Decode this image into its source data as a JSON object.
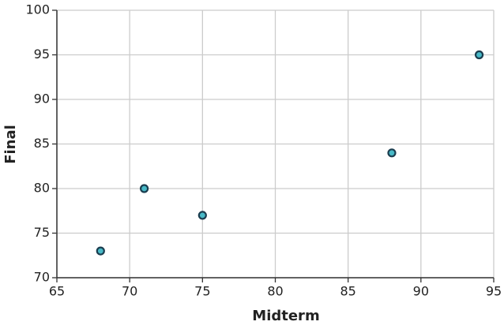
{
  "chart_data": {
    "type": "scatter",
    "x_label": "Midterm",
    "y_label": "Final",
    "x": [
      68,
      71,
      75,
      88,
      94
    ],
    "values": [
      73,
      80,
      77,
      84,
      95
    ],
    "color": "#48b9c7",
    "edge_color": "#1b3d4f",
    "xlim": [
      65,
      95
    ],
    "xticks": [
      65,
      70,
      75,
      80,
      85,
      90,
      95
    ],
    "ylim": [
      70,
      100
    ],
    "yticks": [
      70,
      75,
      80,
      85,
      90,
      95,
      100
    ],
    "grid": true
  }
}
